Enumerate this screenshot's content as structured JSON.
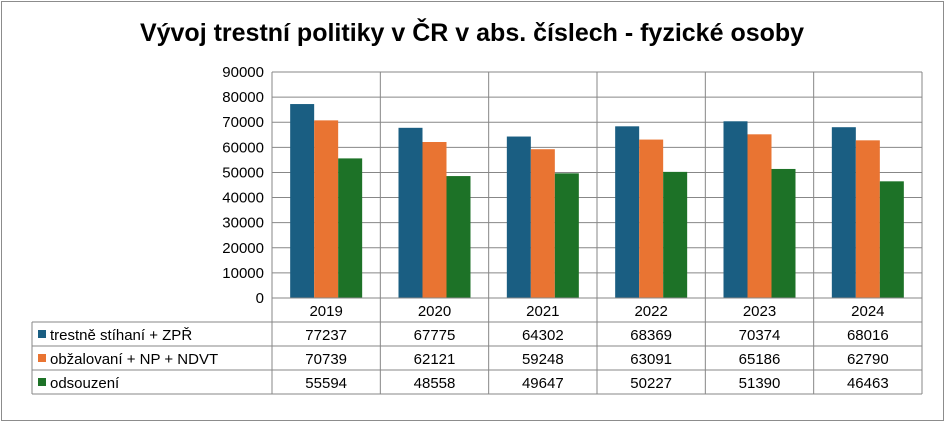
{
  "chart_data": {
    "type": "bar",
    "title": "Vývoj trestní politiky v ČR v abs. číslech - fyzické osoby",
    "categories": [
      "2019",
      "2020",
      "2021",
      "2022",
      "2023",
      "2024"
    ],
    "ylim": [
      0,
      90000
    ],
    "y_ticks": [
      "90000",
      "80000",
      "70000",
      "60000",
      "50000",
      "40000",
      "30000",
      "20000",
      "10000",
      "0"
    ],
    "grid": true,
    "legend": "data-table",
    "series": [
      {
        "name": "trestně stíhaní + ZPŘ",
        "color": "#1a5e82",
        "values": [
          77237,
          67775,
          64302,
          68369,
          70374,
          68016
        ]
      },
      {
        "name": "obžalovaní + NP + NDVT",
        "color": "#e97432",
        "values": [
          70739,
          62121,
          59248,
          63091,
          65186,
          62790
        ]
      },
      {
        "name": "odsouzení",
        "color": "#1d7227",
        "values": [
          55594,
          48558,
          49647,
          50227,
          51390,
          46463
        ]
      }
    ]
  }
}
